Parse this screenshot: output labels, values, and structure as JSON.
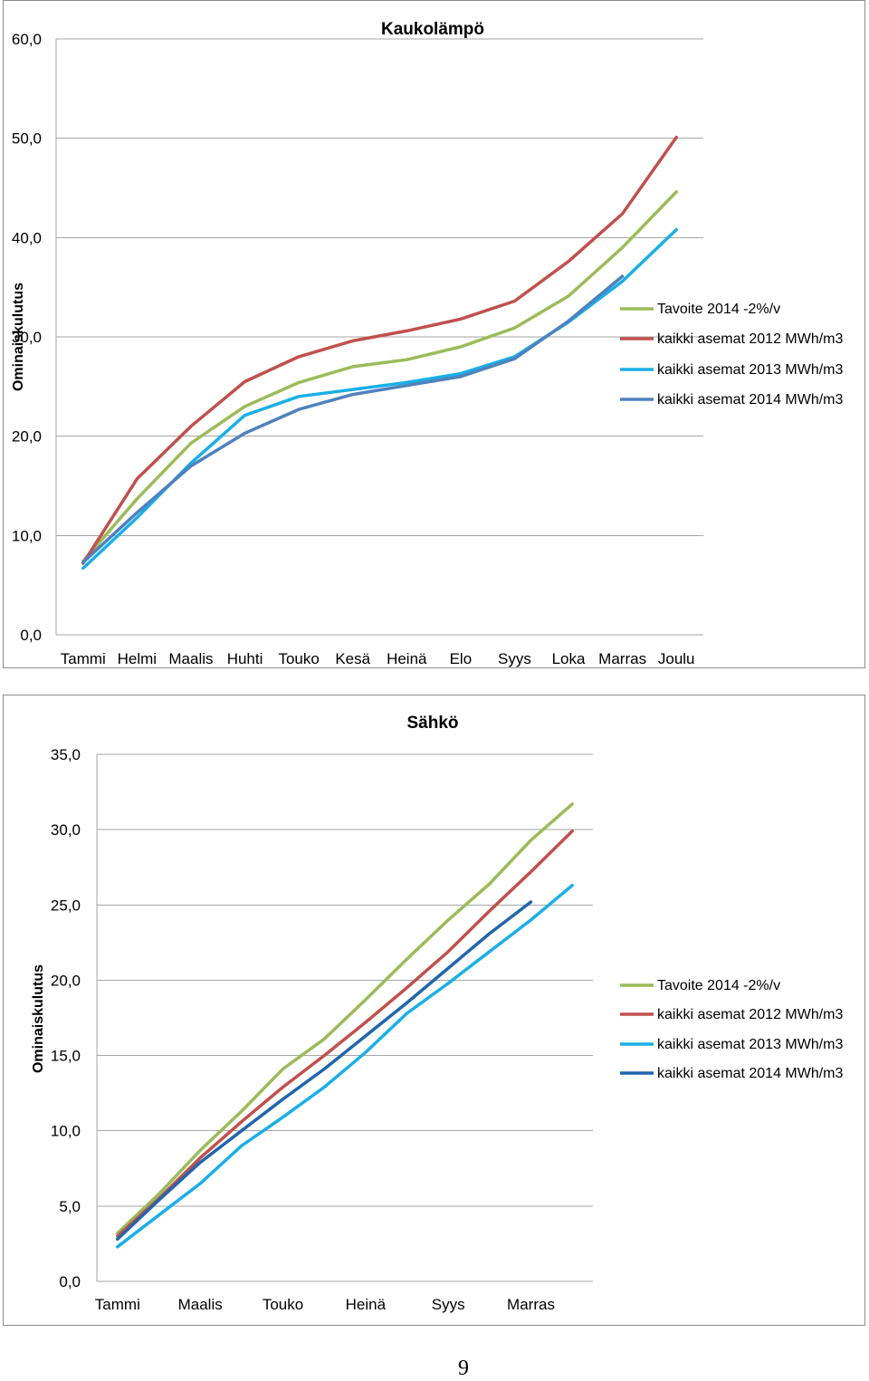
{
  "page": {
    "page_number": "9"
  },
  "chart_data": [
    {
      "type": "line",
      "title": "Kaukolämpö",
      "ylabel": "Ominaiskulutus",
      "categories": [
        "Tammi",
        "Helmi",
        "Maalis",
        "Huhti",
        "Touko",
        "Kesä",
        "Heinä",
        "Elo",
        "Syys",
        "Loka",
        "Marras",
        "Joulu"
      ],
      "ylim": [
        0,
        60
      ],
      "ytick_step": 10,
      "ytick_labels": [
        "0,0",
        "10,0",
        "20,0",
        "30,0",
        "40,0",
        "50,0",
        "60,0"
      ],
      "grid": true,
      "legend": "right",
      "series": [
        {
          "name": "Tavoite 2014 -2%/v",
          "color": "#9BBB59",
          "values": [
            7.4,
            13.7,
            19.3,
            23.0,
            25.4,
            27.0,
            27.7,
            29.0,
            30.9,
            34.1,
            39.0,
            44.6
          ]
        },
        {
          "name": "kaikki asemat 2012 MWh/m3",
          "color": "#C0504D",
          "values": [
            7.2,
            15.7,
            21.0,
            25.5,
            28.0,
            29.6,
            30.6,
            31.8,
            33.6,
            37.6,
            42.4,
            50.1
          ]
        },
        {
          "name": "kaikki asemat 2013 MWh/m3",
          "color": "#1AAFE6",
          "values": [
            6.7,
            11.8,
            17.3,
            22.1,
            24.0,
            24.7,
            25.4,
            26.3,
            28.0,
            31.5,
            35.6,
            40.8
          ]
        },
        {
          "name": "kaikki asemat 2014 MWh/m3",
          "color": "#4F81BD",
          "values": [
            7.3,
            12.3,
            17.0,
            20.3,
            22.7,
            24.2,
            25.1,
            26.0,
            27.8,
            31.6,
            36.1,
            null
          ]
        }
      ]
    },
    {
      "type": "line",
      "title": "Sähkö",
      "ylabel": "Ominaiskulutus",
      "categories": [
        "Tammi",
        "",
        "Maalis",
        "",
        "Touko",
        "",
        "Heinä",
        "",
        "Syys",
        "",
        "Marras",
        ""
      ],
      "ylim": [
        0,
        35
      ],
      "ytick_step": 5,
      "ytick_labels": [
        "0,0",
        "5,0",
        "10,0",
        "15,0",
        "20,0",
        "25,0",
        "30,0",
        "35,0"
      ],
      "grid": true,
      "legend": "right",
      "series": [
        {
          "name": "Tavoite 2014 -2%/v",
          "color": "#9BBB59",
          "values": [
            3.2,
            5.8,
            8.7,
            11.3,
            14.1,
            16.1,
            18.7,
            21.4,
            24.0,
            26.4,
            29.3,
            31.7
          ]
        },
        {
          "name": "kaikki asemat 2012 MWh/m3",
          "color": "#C0504D",
          "values": [
            3.0,
            5.5,
            8.2,
            10.6,
            12.9,
            15.0,
            17.2,
            19.5,
            21.9,
            24.6,
            27.2,
            29.9
          ]
        },
        {
          "name": "kaikki asemat 2013 MWh/m3",
          "color": "#1AAFE6",
          "values": [
            2.3,
            4.4,
            6.5,
            9.0,
            10.9,
            12.9,
            15.2,
            17.8,
            19.8,
            21.9,
            24.0,
            26.3
          ]
        },
        {
          "name": "kaikki asemat 2014 MWh/m3",
          "color": "#2166AC",
          "values": [
            2.8,
            5.4,
            7.9,
            10.0,
            12.1,
            14.1,
            16.3,
            18.5,
            20.8,
            23.1,
            25.2,
            null
          ]
        }
      ]
    }
  ]
}
